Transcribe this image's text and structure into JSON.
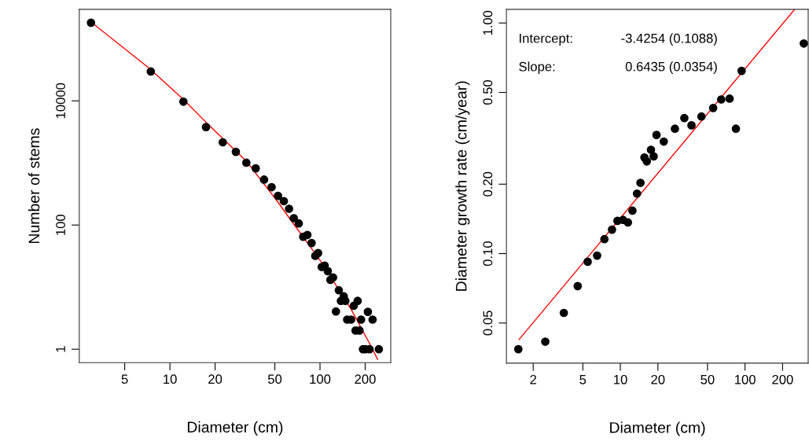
{
  "chart_data": [
    {
      "type": "scatter",
      "xlabel": "Diameter (cm)",
      "ylabel": "Number of stems",
      "log": "xy",
      "grid": false,
      "xlim": [
        2.49,
        296
      ],
      "ylim": [
        0.607,
        297800
      ],
      "xticks": [
        5,
        10,
        20,
        50,
        100,
        200
      ],
      "yticks": [
        1,
        100,
        10000
      ],
      "series": [
        {
          "marker": "circle",
          "color": "#000000",
          "x": [
            2.98,
            7.46,
            12.3,
            17.4,
            22.5,
            27.5,
            32.3,
            37.3,
            42.4,
            47.6,
            52.5,
            57.4,
            62.2,
            66.9,
            72.2,
            77.3,
            82.4,
            87.9,
            93.0,
            97.1,
            102.7,
            107.4,
            112.7,
            117.3,
            122.2,
            127.7,
            133.5,
            137.8,
            144.0,
            147.5,
            151.7,
            161.1,
            167.8,
            172.6,
            178.2,
            183.2,
            187.8,
            193.2,
            201,
            208.4,
            214,
            224,
            246.6
          ],
          "values": [
            181600,
            29700,
            9700,
            3780,
            2150,
            1510,
            1010,
            819,
            539,
            407,
            295,
            243,
            183,
            129,
            106,
            64.7,
            69.3,
            51.3,
            31.8,
            35.4,
            21.1,
            22.2,
            18.1,
            13.1,
            14.3,
            4.05,
            8.9,
            6.0,
            7.1,
            6.0,
            3.0,
            3.0,
            5.0,
            2.0,
            6.0,
            2.0,
            3.0,
            1,
            1,
            4.0,
            1,
            3.0,
            1
          ]
        },
        {
          "type": "line",
          "marker": "none",
          "color": "#ff0000",
          "x": [
            3.07,
            7.28,
            12.3,
            18.4,
            32.3,
            52.3,
            63.9,
            84.7,
            103.6,
            161.1,
            213.8,
            241.8
          ],
          "values": [
            176000,
            33600,
            10500,
            3960,
            1070,
            236,
            120,
            47.4,
            24.0,
            4.4,
            1.24,
            0.689
          ]
        }
      ]
    },
    {
      "type": "scatter",
      "xlabel": "Diameter (cm)",
      "ylabel": "Diameter growth rate (cm/year)",
      "log": "xy",
      "grid": false,
      "xlim": [
        1.22,
        321
      ],
      "ylim": [
        0.0335,
        1.146
      ],
      "xticks": [
        2,
        5,
        10,
        20,
        50,
        100,
        200
      ],
      "yticks": [
        {
          "value": 0.05,
          "label": "0.05"
        },
        {
          "value": 0.1,
          "label": "0.10"
        },
        {
          "value": 0.2,
          "label": "0.20"
        },
        {
          "value": 0.5,
          "label": "0.50"
        },
        {
          "value": 1,
          "label": "1.00"
        }
      ],
      "annotations": [
        "Intercept:",
        "-3.4254 (0.1088)",
        "Slope:",
        "0.6435 (0.0354)"
      ],
      "series": [
        {
          "marker": "circle",
          "color": "#000000",
          "x": [
            1.52,
            2.5,
            3.52,
            4.55,
            5.47,
            6.51,
            7.45,
            8.57,
            9.48,
            10.5,
            11.5,
            12.5,
            13.6,
            14.5,
            15.6,
            16.3,
            17.6,
            18.5,
            19.5,
            22.3,
            27.4,
            32.6,
            37.2,
            44.7,
            55.5,
            64.4,
            75.2,
            84.5,
            93.9,
            296
          ],
          "values": [
            0.0385,
            0.0415,
            0.0553,
            0.0723,
            0.0922,
            0.098,
            0.1155,
            0.127,
            0.1387,
            0.14,
            0.1365,
            0.1535,
            0.182,
            0.2027,
            0.261,
            0.251,
            0.282,
            0.264,
            0.327,
            0.306,
            0.348,
            0.387,
            0.36,
            0.393,
            0.428,
            0.466,
            0.47,
            0.348,
            0.62,
            0.815
          ]
        },
        {
          "type": "line",
          "marker": "none",
          "color": "#ff0000",
          "x": [
            1.54,
            250
          ],
          "values": [
            0.0424,
            1.146
          ]
        }
      ]
    }
  ]
}
